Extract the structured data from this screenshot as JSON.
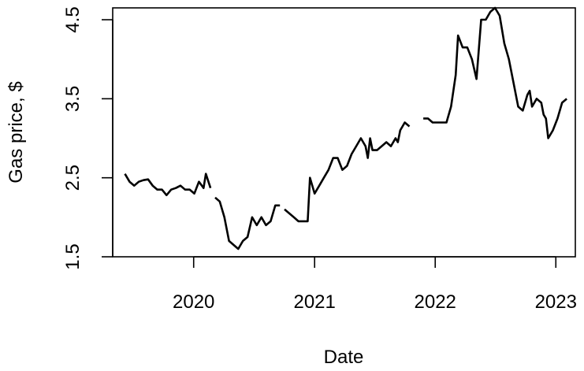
{
  "chart_data": {
    "type": "line",
    "title": "",
    "xlabel": "Date",
    "ylabel": "Gas price, $",
    "x_ticks": [
      "2020",
      "2021",
      "2022",
      "2023"
    ],
    "y_ticks": [
      "1.5",
      "2.5",
      "3.5",
      "4.5"
    ],
    "xlim": [
      "2019-05-01",
      "2023-03-01"
    ],
    "ylim": [
      1.5,
      4.65
    ],
    "grid": false,
    "legend": "none",
    "line_color": "#000000",
    "series": [
      {
        "segments": [
          [
            [
              "2019-06-07",
              2.55
            ],
            [
              "2019-06-21",
              2.45
            ],
            [
              "2019-07-05",
              2.4
            ],
            [
              "2019-07-19",
              2.45
            ],
            [
              "2019-08-02",
              2.47
            ],
            [
              "2019-08-16",
              2.48
            ],
            [
              "2019-08-30",
              2.4
            ],
            [
              "2019-09-13",
              2.35
            ],
            [
              "2019-09-27",
              2.35
            ],
            [
              "2019-10-11",
              2.28
            ],
            [
              "2019-10-25",
              2.35
            ],
            [
              "2019-11-08",
              2.37
            ],
            [
              "2019-11-22",
              2.4
            ],
            [
              "2019-12-06",
              2.35
            ],
            [
              "2019-12-20",
              2.35
            ],
            [
              "2020-01-03",
              2.3
            ],
            [
              "2020-01-17",
              2.45
            ],
            [
              "2020-01-31",
              2.37
            ],
            [
              "2020-02-07",
              2.55
            ],
            [
              "2020-02-21",
              2.37
            ]
          ],
          [
            [
              "2020-03-06",
              2.25
            ],
            [
              "2020-03-20",
              2.2
            ],
            [
              "2020-04-03",
              2.0
            ],
            [
              "2020-04-17",
              1.7
            ],
            [
              "2020-05-01",
              1.65
            ],
            [
              "2020-05-15",
              1.6
            ],
            [
              "2020-05-29",
              1.7
            ],
            [
              "2020-06-12",
              1.75
            ],
            [
              "2020-06-26",
              2.0
            ],
            [
              "2020-07-10",
              1.9
            ],
            [
              "2020-07-24",
              2.0
            ],
            [
              "2020-08-07",
              1.9
            ],
            [
              "2020-08-21",
              1.95
            ],
            [
              "2020-09-04",
              2.15
            ],
            [
              "2020-09-18",
              2.15
            ]
          ],
          [
            [
              "2020-10-02",
              2.1
            ],
            [
              "2020-10-16",
              2.05
            ],
            [
              "2020-10-30",
              2.0
            ],
            [
              "2020-11-13",
              1.95
            ],
            [
              "2020-11-27",
              1.95
            ],
            [
              "2020-12-11",
              1.95
            ],
            [
              "2020-12-18",
              2.5
            ],
            [
              "2021-01-01",
              2.3
            ],
            [
              "2021-01-15",
              2.4
            ],
            [
              "2021-01-29",
              2.5
            ],
            [
              "2021-02-12",
              2.6
            ],
            [
              "2021-02-26",
              2.75
            ],
            [
              "2021-03-12",
              2.75
            ],
            [
              "2021-03-26",
              2.6
            ],
            [
              "2021-04-09",
              2.65
            ],
            [
              "2021-04-23",
              2.8
            ],
            [
              "2021-05-07",
              2.9
            ],
            [
              "2021-05-21",
              3.0
            ],
            [
              "2021-06-04",
              2.9
            ],
            [
              "2021-06-11",
              2.75
            ],
            [
              "2021-06-18",
              3.0
            ],
            [
              "2021-06-25",
              2.85
            ],
            [
              "2021-07-09",
              2.85
            ],
            [
              "2021-07-23",
              2.9
            ],
            [
              "2021-08-06",
              2.95
            ],
            [
              "2021-08-20",
              2.9
            ],
            [
              "2021-09-03",
              3.0
            ],
            [
              "2021-09-10",
              2.95
            ],
            [
              "2021-09-17",
              3.1
            ],
            [
              "2021-10-01",
              3.2
            ],
            [
              "2021-10-15",
              3.15
            ]
          ],
          [
            [
              "2021-11-26",
              3.25
            ],
            [
              "2021-12-10",
              3.25
            ],
            [
              "2021-12-24",
              3.2
            ],
            [
              "2022-01-07",
              3.2
            ],
            [
              "2022-01-21",
              3.2
            ],
            [
              "2022-02-04",
              3.2
            ],
            [
              "2022-02-18",
              3.4
            ],
            [
              "2022-03-04",
              3.8
            ],
            [
              "2022-03-11",
              4.3
            ],
            [
              "2022-03-25",
              4.15
            ],
            [
              "2022-04-08",
              4.15
            ],
            [
              "2022-04-22",
              4.0
            ],
            [
              "2022-05-06",
              3.75
            ],
            [
              "2022-05-20",
              4.5
            ],
            [
              "2022-06-03",
              4.5
            ],
            [
              "2022-06-17",
              4.6
            ],
            [
              "2022-07-01",
              4.65
            ],
            [
              "2022-07-15",
              4.55
            ],
            [
              "2022-07-29",
              4.2
            ],
            [
              "2022-08-12",
              4.0
            ],
            [
              "2022-08-26",
              3.7
            ],
            [
              "2022-09-09",
              3.4
            ],
            [
              "2022-09-23",
              3.35
            ],
            [
              "2022-10-07",
              3.55
            ],
            [
              "2022-10-14",
              3.6
            ],
            [
              "2022-10-21",
              3.4
            ],
            [
              "2022-11-04",
              3.5
            ],
            [
              "2022-11-18",
              3.45
            ],
            [
              "2022-11-25",
              3.3
            ],
            [
              "2022-12-02",
              3.25
            ],
            [
              "2022-12-09",
              3.0
            ],
            [
              "2022-12-23",
              3.1
            ],
            [
              "2023-01-06",
              3.25
            ],
            [
              "2023-01-20",
              3.45
            ],
            [
              "2023-02-03",
              3.5
            ]
          ]
        ]
      }
    ]
  }
}
